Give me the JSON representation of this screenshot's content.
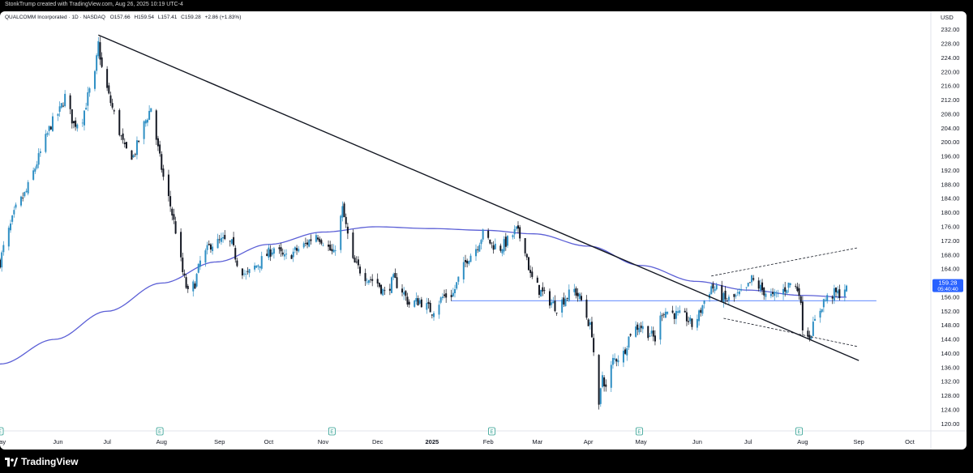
{
  "header": {
    "credit": "StonkTrump created with TradingView.com, Aug 26, 2025 10:19 UTC-4"
  },
  "legend": {
    "symbol": "QUALCOMM Incorporated · 1D · NASDAQ",
    "open": "O157.66",
    "high": "H159.54",
    "low": "L157.41",
    "close": "C159.28",
    "change": "+2.86 (+1.83%)"
  },
  "currency": "USD",
  "price_badge": {
    "price": "159.28",
    "countdown": "05:40:40"
  },
  "brand": {
    "name": "TradingView"
  },
  "colors": {
    "up": "#2f8fc4",
    "down": "#131722",
    "ma": "#5b5fd6",
    "trendline": "#131722",
    "support": "#2962ff",
    "badge": "#2962ff"
  },
  "chart_data": {
    "type": "candlestick",
    "ylim": [
      118,
      234
    ],
    "y_ticks": [
      120,
      124,
      128,
      132,
      136,
      140,
      144,
      148,
      152,
      156,
      160,
      164,
      168,
      172,
      176,
      180,
      184,
      188,
      192,
      196,
      200,
      204,
      208,
      212,
      216,
      220,
      224,
      228,
      232
    ],
    "x_range": [
      "2024-05-01",
      "2025-10-13"
    ],
    "x_ticks": [
      {
        "label": "May",
        "date": "2024-05-01"
      },
      {
        "label": "Jun",
        "date": "2024-06-03"
      },
      {
        "label": "Jul",
        "date": "2024-07-01"
      },
      {
        "label": "Aug",
        "date": "2024-08-01"
      },
      {
        "label": "Sep",
        "date": "2024-09-03"
      },
      {
        "label": "Oct",
        "date": "2024-10-01"
      },
      {
        "label": "Nov",
        "date": "2024-11-01"
      },
      {
        "label": "Dec",
        "date": "2024-12-02"
      },
      {
        "label": "2025",
        "date": "2025-01-02",
        "bold": true
      },
      {
        "label": "Feb",
        "date": "2025-02-03"
      },
      {
        "label": "Mar",
        "date": "2025-03-03"
      },
      {
        "label": "Apr",
        "date": "2025-04-01"
      },
      {
        "label": "May",
        "date": "2025-05-01"
      },
      {
        "label": "Jun",
        "date": "2025-06-02"
      },
      {
        "label": "Jul",
        "date": "2025-07-01"
      },
      {
        "label": "Aug",
        "date": "2025-08-01"
      },
      {
        "label": "Sep",
        "date": "2025-09-02"
      },
      {
        "label": "Oct",
        "date": "2025-10-01"
      }
    ],
    "earnings_markers": [
      "2024-05-01",
      "2024-07-31",
      "2024-11-06",
      "2025-02-05",
      "2025-04-30",
      "2025-07-30"
    ],
    "earnings_label": "E",
    "price_anchors": [
      [
        "2024-05-01",
        166
      ],
      [
        "2024-05-03",
        170
      ],
      [
        "2024-05-10",
        181
      ],
      [
        "2024-05-16",
        186
      ],
      [
        "2024-05-24",
        197
      ],
      [
        "2024-05-30",
        205
      ],
      [
        "2024-06-04",
        209
      ],
      [
        "2024-06-07",
        213
      ],
      [
        "2024-06-12",
        205
      ],
      [
        "2024-06-17",
        207
      ],
      [
        "2024-06-20",
        213
      ],
      [
        "2024-06-24",
        219
      ],
      [
        "2024-06-26",
        228
      ],
      [
        "2024-06-28",
        221
      ],
      [
        "2024-07-02",
        213
      ],
      [
        "2024-07-08",
        203
      ],
      [
        "2024-07-11",
        198
      ],
      [
        "2024-07-16",
        196
      ],
      [
        "2024-07-22",
        205
      ],
      [
        "2024-07-26",
        210
      ],
      [
        "2024-07-30",
        198
      ],
      [
        "2024-08-02",
        190
      ],
      [
        "2024-08-06",
        182
      ],
      [
        "2024-08-09",
        175
      ],
      [
        "2024-08-13",
        163
      ],
      [
        "2024-08-16",
        157
      ],
      [
        "2024-08-20",
        160
      ],
      [
        "2024-08-23",
        166
      ],
      [
        "2024-08-29",
        171
      ],
      [
        "2024-09-05",
        172
      ],
      [
        "2024-09-10",
        171
      ],
      [
        "2024-09-13",
        166
      ],
      [
        "2024-09-18",
        162
      ],
      [
        "2024-09-24",
        165
      ],
      [
        "2024-09-30",
        168
      ],
      [
        "2024-10-04",
        170
      ],
      [
        "2024-10-10",
        167
      ],
      [
        "2024-10-16",
        169
      ],
      [
        "2024-10-22",
        171
      ],
      [
        "2024-10-28",
        174
      ],
      [
        "2024-11-01",
        172
      ],
      [
        "2024-11-07",
        168
      ],
      [
        "2024-11-12",
        181
      ],
      [
        "2024-11-18",
        166
      ],
      [
        "2024-11-25",
        162
      ],
      [
        "2024-12-02",
        160
      ],
      [
        "2024-12-06",
        157
      ],
      [
        "2024-12-11",
        161
      ],
      [
        "2024-12-16",
        158
      ],
      [
        "2024-12-20",
        154
      ],
      [
        "2024-12-26",
        155
      ],
      [
        "2025-01-02",
        152
      ],
      [
        "2025-01-08",
        156
      ],
      [
        "2025-01-14",
        157
      ],
      [
        "2025-01-17",
        161
      ],
      [
        "2025-01-22",
        167
      ],
      [
        "2025-01-27",
        170
      ],
      [
        "2025-01-31",
        174
      ],
      [
        "2025-02-05",
        171
      ],
      [
        "2025-02-10",
        170
      ],
      [
        "2025-02-14",
        172
      ],
      [
        "2025-02-19",
        175
      ],
      [
        "2025-02-24",
        170
      ],
      [
        "2025-02-27",
        162
      ],
      [
        "2025-03-04",
        158
      ],
      [
        "2025-03-10",
        155
      ],
      [
        "2025-03-14",
        153
      ],
      [
        "2025-03-19",
        156
      ],
      [
        "2025-03-24",
        158
      ],
      [
        "2025-03-28",
        155
      ],
      [
        "2025-04-03",
        146
      ],
      [
        "2025-04-07",
        124
      ],
      [
        "2025-04-09",
        134
      ],
      [
        "2025-04-11",
        130
      ],
      [
        "2025-04-15",
        138
      ],
      [
        "2025-04-21",
        140
      ],
      [
        "2025-04-25",
        146
      ],
      [
        "2025-04-30",
        148
      ],
      [
        "2025-05-05",
        146
      ],
      [
        "2025-05-09",
        144
      ],
      [
        "2025-05-13",
        152
      ],
      [
        "2025-05-16",
        152
      ],
      [
        "2025-05-21",
        151
      ],
      [
        "2025-05-27",
        150
      ],
      [
        "2025-05-30",
        148
      ],
      [
        "2025-06-03",
        151
      ],
      [
        "2025-06-06",
        155
      ],
      [
        "2025-06-10",
        159
      ],
      [
        "2025-06-13",
        158
      ],
      [
        "2025-06-18",
        155
      ],
      [
        "2025-06-24",
        156
      ],
      [
        "2025-06-30",
        158
      ],
      [
        "2025-07-03",
        161
      ],
      [
        "2025-07-09",
        158
      ],
      [
        "2025-07-15",
        156
      ],
      [
        "2025-07-21",
        158
      ],
      [
        "2025-07-25",
        160
      ],
      [
        "2025-07-30",
        158
      ],
      [
        "2025-08-01",
        148
      ],
      [
        "2025-08-05",
        145
      ],
      [
        "2025-08-08",
        149
      ],
      [
        "2025-08-13",
        155
      ],
      [
        "2025-08-19",
        157
      ],
      [
        "2025-08-22",
        157
      ],
      [
        "2025-08-26",
        159.28
      ]
    ],
    "ma_anchors": [
      [
        "2024-05-01",
        137
      ],
      [
        "2024-06-01",
        144
      ],
      [
        "2024-07-01",
        152
      ],
      [
        "2024-08-01",
        160
      ],
      [
        "2024-09-01",
        166
      ],
      [
        "2024-10-01",
        171
      ],
      [
        "2024-11-01",
        174.5
      ],
      [
        "2024-12-01",
        176
      ],
      [
        "2025-01-01",
        175.5
      ],
      [
        "2025-02-01",
        175
      ],
      [
        "2025-03-01",
        174
      ],
      [
        "2025-04-01",
        170.5
      ],
      [
        "2025-05-01",
        165
      ],
      [
        "2025-06-01",
        160.5
      ],
      [
        "2025-07-01",
        158
      ],
      [
        "2025-08-01",
        156.5
      ],
      [
        "2025-08-26",
        156
      ]
    ],
    "trendline": {
      "from": [
        "2024-06-26",
        230.5
      ],
      "to": [
        "2025-09-02",
        138
      ]
    },
    "support_line": {
      "from": [
        "2025-01-13",
        155
      ],
      "to": [
        "2025-09-12",
        155
      ]
    },
    "channel_upper": {
      "from": [
        "2025-06-10",
        162
      ],
      "to": [
        "2025-09-01",
        170
      ]
    },
    "channel_lower": {
      "from": [
        "2025-06-17",
        150
      ],
      "to": [
        "2025-09-01",
        142
      ]
    },
    "current_price": 159.28
  }
}
